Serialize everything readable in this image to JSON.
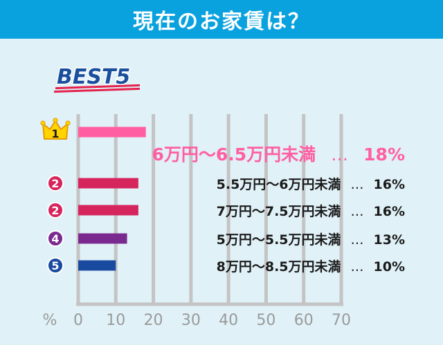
{
  "header": {
    "title": "現在のお家賃は？"
  },
  "badge": {
    "text": "BEST5",
    "color": "#1a4f9e",
    "underline": "#e6204b"
  },
  "chart_data": {
    "type": "bar",
    "orientation": "horizontal",
    "title": "現在のお家賃は？",
    "x_unit": "%",
    "xlim": [
      0,
      70
    ],
    "x_ticks": [
      "0",
      "10",
      "20",
      "30",
      "40",
      "50",
      "60",
      "70"
    ],
    "grid": true,
    "categories": [
      "6万円〜6.5万円未満",
      "5.5万円〜6万円未満",
      "7万円〜7.5万円未満",
      "5万円〜5.5万円未満",
      "8万円〜8.5万円未満"
    ],
    "values": [
      18,
      16,
      16,
      13,
      10
    ],
    "ranks": [
      "1",
      "2",
      "2",
      "4",
      "5"
    ],
    "value_labels": [
      "18%",
      "16%",
      "16%",
      "13%",
      "10%"
    ],
    "separator": "…",
    "colors": [
      "#ff5fa2",
      "#d6245c",
      "#d6245c",
      "#7a2a8f",
      "#1a4aa0"
    ],
    "rank_icons": [
      "crown-icon",
      "circle-badge-icon",
      "circle-badge-icon",
      "circle-badge-icon",
      "circle-badge-icon"
    ]
  }
}
